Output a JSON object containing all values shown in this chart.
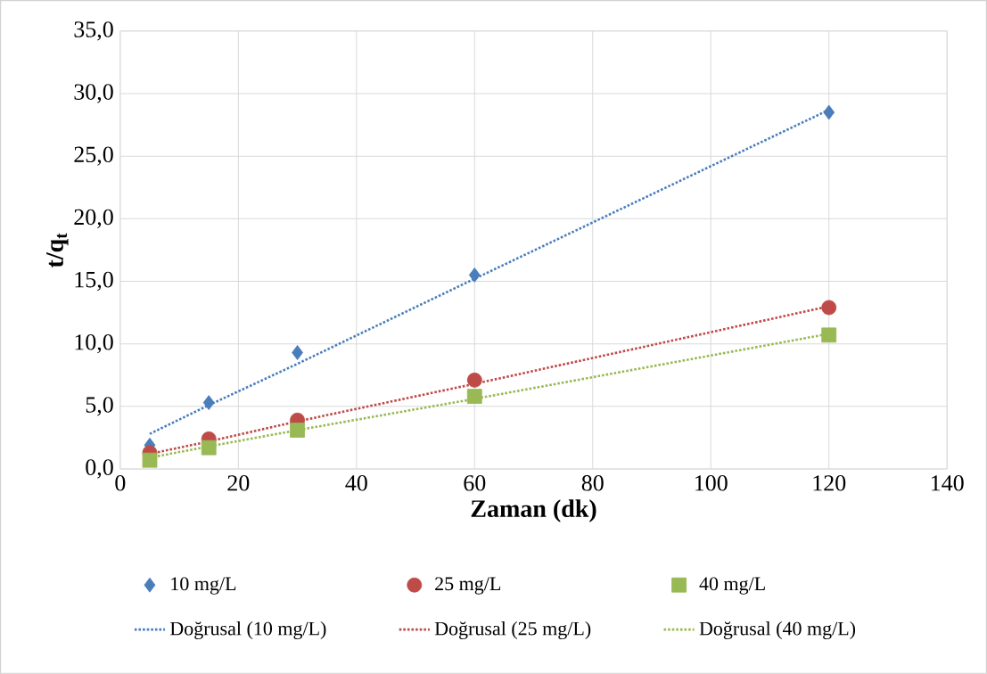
{
  "chart_data": {
    "type": "scatter",
    "xlabel": "Zaman (dk)",
    "ylabel": "t/q$_{t}$",
    "x": [
      5,
      15,
      30,
      60,
      120
    ],
    "series": [
      {
        "name": "10 mg/L",
        "color": "#4a7ebb",
        "marker": "diamond",
        "values": [
          1.9,
          5.3,
          9.3,
          15.5,
          28.5
        ]
      },
      {
        "name": "25 mg/L",
        "color": "#be4b48",
        "marker": "circle",
        "values": [
          1.3,
          2.4,
          3.9,
          7.1,
          12.9
        ]
      },
      {
        "name": "40 mg/L",
        "color": "#98b954",
        "marker": "square",
        "values": [
          0.7,
          1.7,
          3.1,
          5.8,
          10.7
        ]
      },
      {
        "name": "Doğrusal (10 mg/L)",
        "type": "line",
        "line_style": "dotted",
        "color": "#4a7ebb",
        "values": [
          2.8,
          5.1,
          8.4,
          15.2,
          28.7
        ]
      },
      {
        "name": "Doğrusal (25 mg/L)",
        "type": "line",
        "line_style": "dotted",
        "color": "#be4b48",
        "values": [
          1.2,
          2.2,
          3.8,
          6.8,
          13.0
        ]
      },
      {
        "name": "Doğrusal (40 mg/L)",
        "type": "line",
        "line_style": "dotted",
        "color": "#98b954",
        "values": [
          0.9,
          1.8,
          3.1,
          5.6,
          10.8
        ]
      }
    ],
    "xlim": [
      0,
      140
    ],
    "xticks": [
      0,
      20,
      40,
      60,
      80,
      100,
      120,
      140
    ],
    "ylim": [
      0,
      35
    ],
    "yticks": [
      {
        "value": 0,
        "label": "0,0"
      },
      {
        "value": 5,
        "label": "5,0"
      },
      {
        "value": 10,
        "label": "10,0"
      },
      {
        "value": 15,
        "label": "15,0"
      },
      {
        "value": 20,
        "label": "20,0"
      },
      {
        "value": 25,
        "label": "25,0"
      },
      {
        "value": 30,
        "label": "30,0"
      },
      {
        "value": 35,
        "label": "35,0"
      }
    ],
    "grid": true,
    "legend": "bottom"
  }
}
